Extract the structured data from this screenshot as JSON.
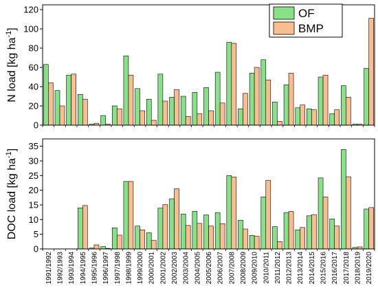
{
  "chart_data": [
    {
      "type": "bar",
      "ylabel_main": "N load [kg ha",
      "ylabel_sup": "-1",
      "ylabel_end": "]",
      "ylim": [
        0,
        125
      ],
      "yticks": [
        0,
        20,
        40,
        60,
        80,
        100,
        120
      ],
      "categories": [
        "1991/1992",
        "1992/1993",
        "1993/1994",
        "1994/1995",
        "1995/1996",
        "1996/1997",
        "1997/1998",
        "1998/1999",
        "1999/2000",
        "2000/2001",
        "2001/2002",
        "2002/2003",
        "2003/2004",
        "2004/2005",
        "2005/2006",
        "2006/2007",
        "2007/2008",
        "2008/2009",
        "2009/2010",
        "2010/2011",
        "2011/2012",
        "2012/2013",
        "2013/2014",
        "2014/2015",
        "2015/2016",
        "2016/2017",
        "2017/2018",
        "2018/2019",
        "2019/2020"
      ],
      "series": [
        {
          "name": "OF",
          "color": "#88e088",
          "values": [
            63,
            36,
            52,
            32,
            1,
            10,
            20,
            72,
            38,
            27,
            53,
            29,
            30,
            34,
            39,
            55,
            86,
            17,
            54,
            68,
            24,
            42,
            18,
            17,
            50,
            12,
            41,
            1,
            59
          ]
        },
        {
          "name": "BMP",
          "color": "#f9bd92",
          "values": [
            44,
            20,
            53,
            27,
            2,
            1,
            17,
            52,
            15,
            5,
            25,
            37,
            9,
            12,
            15,
            23,
            85,
            33,
            60,
            47,
            4,
            54,
            21,
            16,
            52,
            16,
            29,
            1,
            111
          ]
        }
      ],
      "legend": "top-right"
    },
    {
      "type": "bar",
      "ylabel_main": "DOC load [kg ha",
      "ylabel_sup": "-1",
      "ylabel_end": "]",
      "ylim": [
        0,
        37.5
      ],
      "yticks": [
        0,
        5,
        10,
        15,
        20,
        25,
        30,
        35
      ],
      "categories": [
        "1991/1992",
        "1992/1993",
        "1993/1994",
        "1994/1995",
        "1995/1996",
        "1996/1997",
        "1997/1998",
        "1998/1999",
        "1999/2000",
        "2000/2001",
        "2001/2002",
        "2002/2003",
        "2003/2004",
        "2004/2005",
        "2005/2006",
        "2006/2007",
        "2007/2008",
        "2008/2009",
        "2009/2010",
        "2010/2011",
        "2011/2012",
        "2012/2013",
        "2013/2014",
        "2014/2015",
        "2015/2016",
        "2016/2017",
        "2017/2018",
        "2018/2019",
        "2019/2020"
      ],
      "series": [
        {
          "name": "OF",
          "color": "#88e088",
          "values": [
            0,
            0,
            0,
            14,
            0.3,
            0.8,
            7.2,
            23,
            7.8,
            5.5,
            13.9,
            17.1,
            11.9,
            12.8,
            11.6,
            12.4,
            25,
            9.8,
            4.6,
            17.7,
            7.6,
            12.4,
            6.5,
            11.3,
            24.2,
            10.2,
            33.9,
            0.5,
            13.6
          ]
        },
        {
          "name": "BMP",
          "color": "#f9bd92",
          "values": [
            0,
            0,
            0,
            14.8,
            1.4,
            0.2,
            4.7,
            23,
            6.5,
            2.9,
            15.1,
            20.5,
            8,
            8.7,
            7.8,
            8.6,
            24.5,
            6.8,
            4.3,
            23.4,
            2.5,
            12.8,
            7.3,
            11.7,
            17.7,
            7.8,
            24.6,
            0.7,
            14.1
          ]
        }
      ]
    }
  ],
  "legend_items": [
    {
      "label": "OF",
      "color": "#88e088"
    },
    {
      "label": "BMP",
      "color": "#f9bd92"
    }
  ]
}
